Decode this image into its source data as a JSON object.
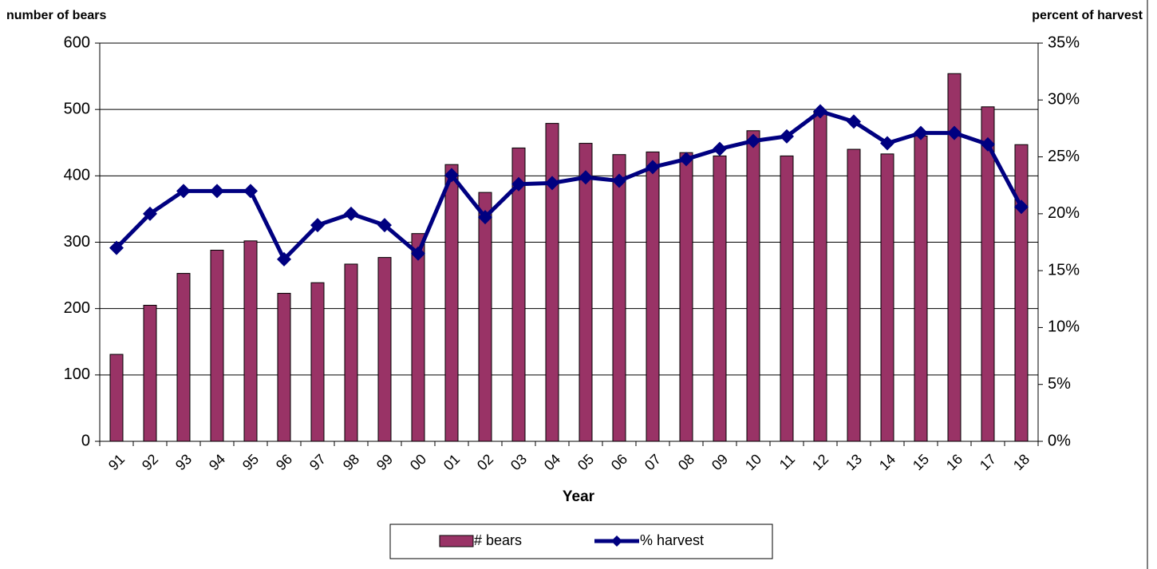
{
  "chart_data": {
    "type": "bar-line",
    "y_axis_title": "number of bears",
    "y2_axis_title": "percent of harvest",
    "x_axis_title": "Year",
    "categories": [
      "91",
      "92",
      "93",
      "94",
      "95",
      "96",
      "97",
      "98",
      "99",
      "00",
      "01",
      "02",
      "03",
      "04",
      "05",
      "06",
      "07",
      "08",
      "09",
      "10",
      "11",
      "12",
      "13",
      "14",
      "15",
      "16",
      "17",
      "18"
    ],
    "series": [
      {
        "name": "# bears",
        "type": "bar",
        "color": "#993366",
        "values": [
          131,
          205,
          253,
          288,
          302,
          223,
          239,
          267,
          277,
          313,
          417,
          375,
          442,
          479,
          449,
          432,
          436,
          435,
          430,
          468,
          430,
          497,
          440,
          433,
          460,
          554,
          504,
          447
        ]
      },
      {
        "name": "% harvest",
        "type": "line",
        "axis": "y2",
        "color": "#000080",
        "values": [
          17,
          20,
          22,
          22,
          22,
          16,
          19,
          20,
          19,
          16.5,
          23.4,
          19.7,
          22.6,
          22.7,
          23.2,
          22.9,
          24.1,
          24.8,
          25.7,
          26.4,
          26.8,
          29,
          28.1,
          26.2,
          27.1,
          27.1,
          26.1,
          20.6
        ]
      }
    ],
    "ylim": [
      0,
      600
    ],
    "yticks": [
      0,
      100,
      200,
      300,
      400,
      500,
      600
    ],
    "y2lim": [
      0,
      35
    ],
    "y2ticks": [
      {
        "value": 0,
        "label": "0%"
      },
      {
        "value": 5,
        "label": "5%"
      },
      {
        "value": 10,
        "label": "10%"
      },
      {
        "value": 15,
        "label": "15%"
      },
      {
        "value": 20,
        "label": "20%"
      },
      {
        "value": 25,
        "label": "25%"
      },
      {
        "value": 30,
        "label": "30%"
      },
      {
        "value": 35,
        "label": "35%"
      }
    ],
    "grid": true,
    "legend": "bottom"
  }
}
